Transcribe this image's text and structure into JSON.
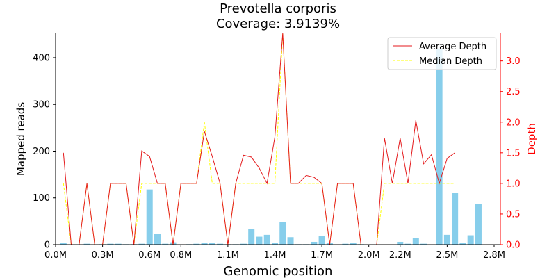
{
  "chart_data": {
    "type": "bar+line",
    "title": "Prevotella corporis",
    "subtitle": "Coverage: 3.9139%",
    "xlabel": "Genomic position",
    "ylabel_left": "Mapped reads",
    "ylabel_right": "Depth",
    "xlim": [
      0,
      2.84
    ],
    "ylim_left": [
      0,
      452
    ],
    "ylim_right": [
      0,
      3.45
    ],
    "x_ticks": [
      0.0,
      0.3,
      0.6,
      0.8,
      1.1,
      1.4,
      1.7,
      2.0,
      2.2,
      2.5,
      2.8
    ],
    "x_tick_labels": [
      "0.0M",
      "0.3M",
      "0.6M",
      "0.8M",
      "1.1M",
      "1.4M",
      "1.7M",
      "2.0M",
      "2.2M",
      "2.5M",
      "2.8M"
    ],
    "y_ticks_left": [
      0,
      100,
      200,
      300,
      400
    ],
    "y_ticks_right": [
      0.0,
      0.5,
      1.0,
      1.5,
      2.0,
      2.5,
      3.0
    ],
    "y_tick_labels_right": [
      "0.0",
      "0.5",
      "1.0",
      "1.5",
      "2.0",
      "2.5",
      "3.0"
    ],
    "bar_color": "#87ceeb",
    "avg_color": "#e41a1c",
    "median_color": "#ffff00",
    "right_axis_color": "#ff0000",
    "positions": [
      0.05,
      0.1,
      0.15,
      0.2,
      0.25,
      0.3,
      0.35,
      0.4,
      0.45,
      0.5,
      0.55,
      0.6,
      0.65,
      0.7,
      0.75,
      0.8,
      0.85,
      0.9,
      0.95,
      1.0,
      1.05,
      1.1,
      1.15,
      1.2,
      1.25,
      1.3,
      1.35,
      1.4,
      1.45,
      1.5,
      1.55,
      1.6,
      1.65,
      1.7,
      1.75,
      1.8,
      1.85,
      1.9,
      1.95,
      2.0,
      2.05,
      2.1,
      2.15,
      2.2,
      2.25,
      2.3,
      2.35,
      2.4,
      2.45,
      2.5,
      2.55,
      2.6,
      2.65,
      2.7,
      2.75,
      2.8
    ],
    "mapped_reads": [
      3,
      0,
      0,
      2,
      0,
      1,
      2,
      2,
      1,
      1,
      2,
      118,
      23,
      2,
      5,
      0,
      1,
      2,
      4,
      3,
      2,
      1,
      1,
      2,
      33,
      17,
      21,
      4,
      48,
      16,
      1,
      1,
      6,
      19,
      3,
      0,
      2,
      3,
      1,
      0,
      0,
      0,
      0,
      6,
      2,
      14,
      2,
      0,
      418,
      21,
      111,
      4,
      20,
      87,
      0,
      0
    ],
    "series": [
      {
        "name": "Average Depth",
        "values": [
          1.5,
          0,
          0,
          1.0,
          0,
          0,
          1.0,
          1.0,
          1.0,
          0,
          1.53,
          1.44,
          1.0,
          1.0,
          0,
          1.0,
          1.0,
          1.0,
          1.85,
          1.44,
          1.0,
          0,
          1.0,
          1.46,
          1.43,
          1.25,
          1.0,
          1.76,
          3.45,
          1.0,
          1.0,
          1.13,
          1.1,
          1.0,
          0,
          1.0,
          1.0,
          1.0,
          0,
          0,
          0,
          1.74,
          1.0,
          1.74,
          1.0,
          2.03,
          1.32,
          1.47,
          1.0,
          1.41,
          1.5
        ],
        "x": [
          0.05,
          0.1,
          0.15,
          0.2,
          0.25,
          0.3,
          0.35,
          0.4,
          0.45,
          0.5,
          0.55,
          0.6,
          0.65,
          0.7,
          0.75,
          0.8,
          0.85,
          0.9,
          0.95,
          1.0,
          1.05,
          1.1,
          1.15,
          1.2,
          1.25,
          1.3,
          1.35,
          1.4,
          1.45,
          1.5,
          1.55,
          1.6,
          1.65,
          1.7,
          1.75,
          1.8,
          1.85,
          1.9,
          1.95,
          2.0,
          2.05,
          2.1,
          2.15,
          2.2,
          2.25,
          2.3,
          2.35,
          2.4,
          2.45,
          2.5,
          2.55
        ]
      },
      {
        "name": "Median Depth",
        "values": [
          1.0,
          0,
          0,
          1.0,
          0,
          0,
          1.0,
          1.0,
          1.0,
          0,
          1.0,
          1.0,
          1.0,
          1.0,
          0,
          1.0,
          1.0,
          1.0,
          2.0,
          1.0,
          1.0,
          0,
          1.0,
          1.0,
          1.0,
          1.0,
          1.0,
          1.0,
          3.45,
          1.0,
          1.0,
          1.0,
          1.0,
          1.0,
          0,
          1.0,
          1.0,
          1.0,
          0,
          0,
          0,
          1.0,
          1.0,
          1.0,
          1.0,
          1.0,
          1.0,
          1.0,
          1.0,
          1.0,
          1.0
        ],
        "x": [
          0.05,
          0.1,
          0.15,
          0.2,
          0.25,
          0.3,
          0.35,
          0.4,
          0.45,
          0.5,
          0.55,
          0.6,
          0.65,
          0.7,
          0.75,
          0.8,
          0.85,
          0.9,
          0.95,
          1.0,
          1.05,
          1.1,
          1.15,
          1.2,
          1.25,
          1.3,
          1.35,
          1.4,
          1.45,
          1.5,
          1.55,
          1.6,
          1.65,
          1.7,
          1.75,
          1.8,
          1.85,
          1.9,
          1.95,
          2.0,
          2.05,
          2.1,
          2.15,
          2.2,
          2.25,
          2.3,
          2.35,
          2.4,
          2.45,
          2.5,
          2.55
        ]
      }
    ],
    "legend_position": "top-right"
  }
}
